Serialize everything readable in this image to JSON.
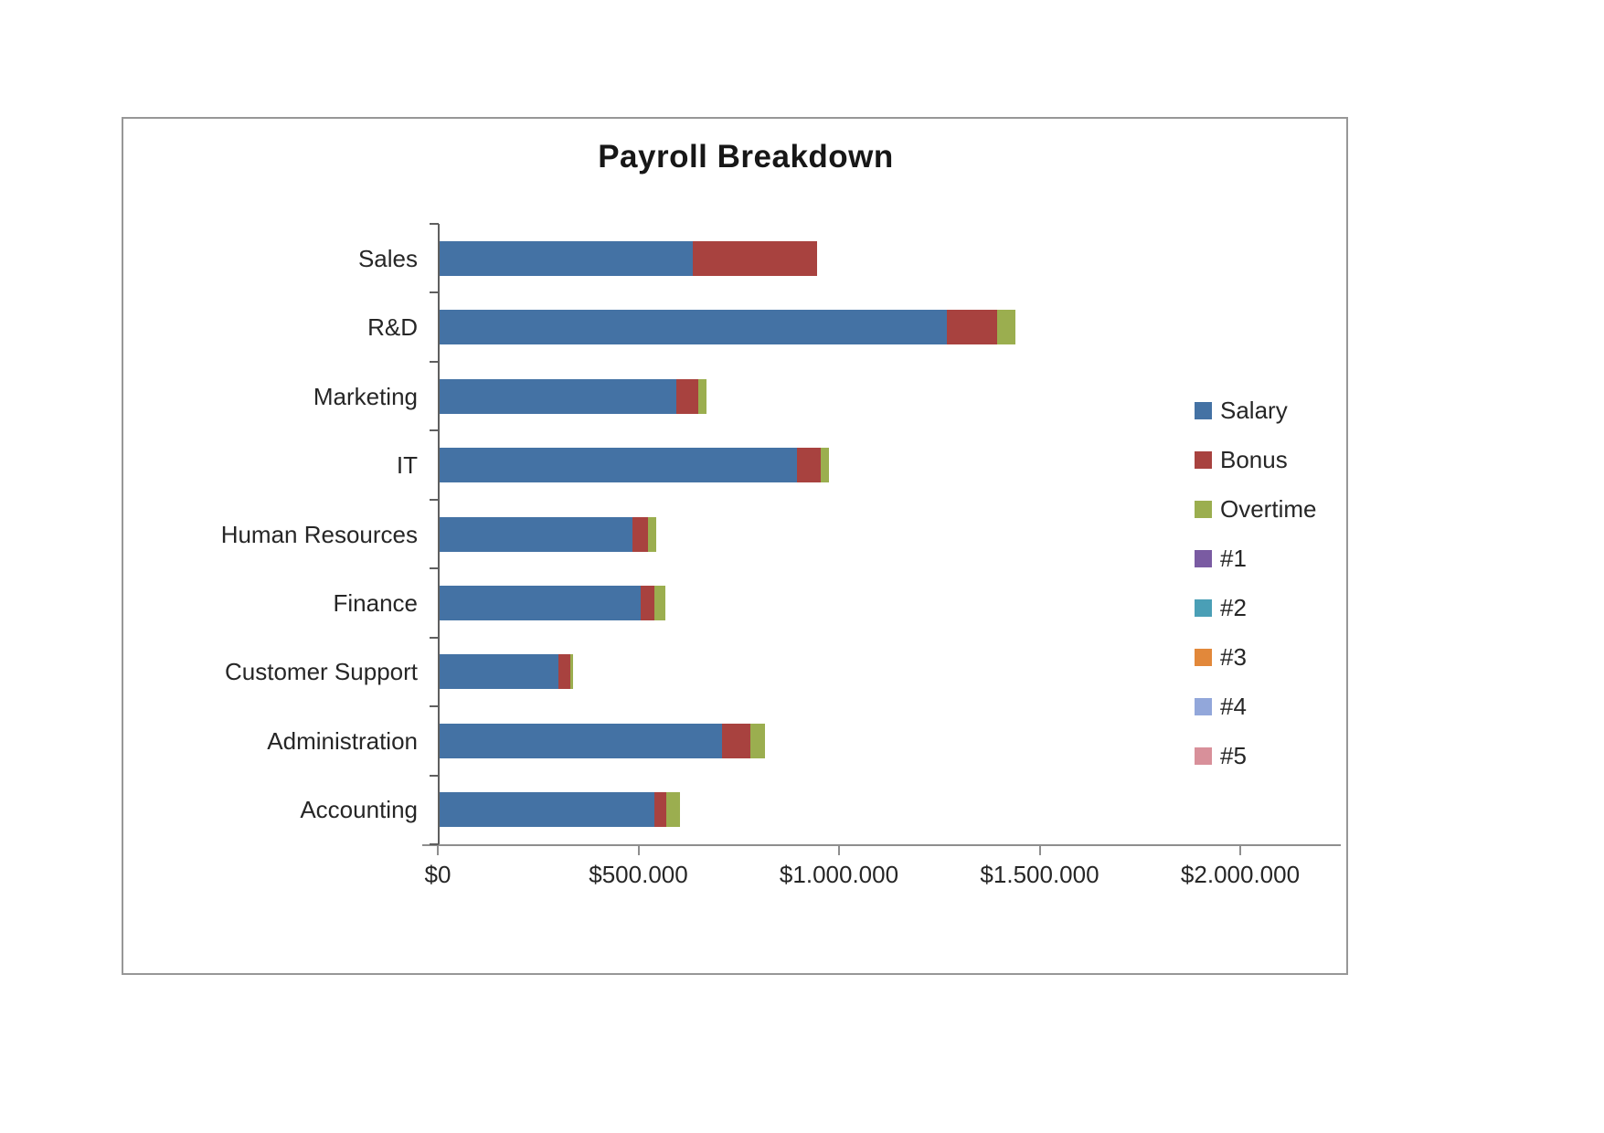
{
  "chart_data": {
    "type": "bar",
    "orientation": "horizontal",
    "stacked": true,
    "title": "Payroll Breakdown",
    "xlabel": "",
    "ylabel": "",
    "grid": false,
    "legend_position": "right",
    "categories": [
      "Sales",
      "R&D",
      "Marketing",
      "IT",
      "Human Resources",
      "Finance",
      "Customer Support",
      "Administration",
      "Accounting"
    ],
    "series": [
      {
        "name": "Salary",
        "color": "#4472a4",
        "values": [
          630000,
          1265000,
          590000,
          890000,
          480000,
          500000,
          295000,
          705000,
          535000
        ]
      },
      {
        "name": "Bonus",
        "color": "#a8423f",
        "values": [
          310000,
          125000,
          55000,
          60000,
          40000,
          35000,
          30000,
          70000,
          30000
        ]
      },
      {
        "name": "Overtime",
        "color": "#9bae4f",
        "values": [
          0,
          45000,
          20000,
          20000,
          20000,
          28000,
          8000,
          35000,
          35000
        ]
      },
      {
        "name": "#1",
        "color": "#7a5ba2",
        "values": [
          0,
          0,
          0,
          0,
          0,
          0,
          0,
          0,
          0
        ]
      },
      {
        "name": "#2",
        "color": "#4a9fb6",
        "values": [
          0,
          0,
          0,
          0,
          0,
          0,
          0,
          0,
          0
        ]
      },
      {
        "name": "#3",
        "color": "#e2883a",
        "values": [
          0,
          0,
          0,
          0,
          0,
          0,
          0,
          0,
          0
        ]
      },
      {
        "name": "#4",
        "color": "#92a7da",
        "values": [
          0,
          0,
          0,
          0,
          0,
          0,
          0,
          0,
          0
        ]
      },
      {
        "name": "#5",
        "color": "#d8909a",
        "values": [
          0,
          0,
          0,
          0,
          0,
          0,
          0,
          0,
          0
        ]
      }
    ],
    "x_axis": {
      "min": 0,
      "max": 2000000,
      "tick_interval": 500000,
      "tick_labels": [
        "$0",
        "$500.000",
        "$1.000.000",
        "$1.500.000",
        "$2.000.000"
      ]
    }
  }
}
